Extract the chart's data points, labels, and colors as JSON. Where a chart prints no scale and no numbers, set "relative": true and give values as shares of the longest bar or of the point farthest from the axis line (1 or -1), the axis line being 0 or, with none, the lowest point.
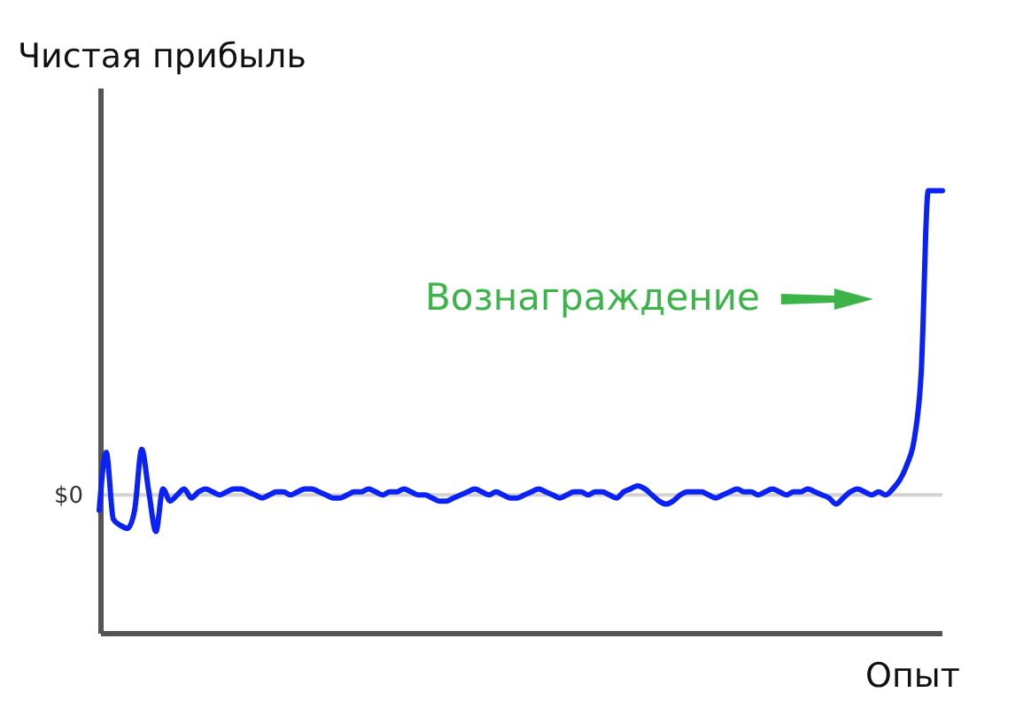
{
  "chart_data": {
    "type": "line",
    "title": "Чистая прибыль",
    "xlabel": "Опыт",
    "relative": true,
    "annotations": [
      "Вознаграждение"
    ],
    "ref_lines": [
      {
        "axis": "y",
        "value": 0,
        "label": "$0",
        "color": "#d3d3d3"
      }
    ],
    "categories": [
      null,
      null,
      null,
      null,
      null,
      null,
      null,
      null,
      null,
      null,
      null,
      null,
      null,
      null,
      null,
      null,
      null,
      null,
      null,
      null,
      null,
      null,
      null,
      null,
      null,
      null,
      null,
      null,
      null,
      null,
      null,
      null,
      null,
      null,
      null,
      null,
      null,
      null,
      null,
      null,
      null,
      null,
      null,
      null,
      null,
      null,
      null,
      null,
      null,
      null,
      null,
      null,
      null,
      null,
      null,
      null,
      null,
      null,
      null,
      null,
      null,
      null,
      null,
      null,
      null,
      null,
      null,
      null,
      null,
      null,
      null,
      null,
      null,
      null,
      null,
      null,
      null,
      null,
      null,
      null,
      null,
      null,
      null,
      null,
      null,
      null,
      null,
      null,
      null,
      null,
      null,
      null,
      null,
      null,
      null,
      null,
      null,
      null,
      null,
      null,
      null,
      null,
      null,
      null,
      null,
      null,
      null,
      null,
      null,
      null,
      null,
      null,
      null,
      null,
      null,
      null,
      null,
      null,
      null,
      null
    ],
    "series": [
      {
        "color": "#0a22f5",
        "values": [
          -0.05,
          0.14,
          -0.08,
          -0.1,
          -0.11,
          -0.05,
          0.15,
          0.01,
          -0.12,
          0.02,
          -0.02,
          0,
          0.02,
          -0.01,
          0.01,
          0.02,
          0.01,
          0,
          0.01,
          0.02,
          0.02,
          0.01,
          0,
          -0.01,
          0,
          0.01,
          0.01,
          0,
          0.01,
          0.02,
          0.02,
          0.01,
          0,
          -0.01,
          -0.01,
          0,
          0.01,
          0.01,
          0.02,
          0.01,
          0,
          0.01,
          0.01,
          0.02,
          0.01,
          0,
          0,
          -0.01,
          -0.02,
          -0.02,
          -0.01,
          0,
          0.01,
          0.02,
          0.01,
          0,
          0.01,
          0,
          -0.01,
          -0.01,
          0,
          0.01,
          0.02,
          0.01,
          0,
          -0.01,
          0,
          0.01,
          0.01,
          0,
          0.01,
          0.01,
          0,
          -0.01,
          0.01,
          0.02,
          0.03,
          0.02,
          0,
          -0.02,
          -0.03,
          -0.02,
          0,
          0.01,
          0.01,
          0.01,
          0,
          -0.01,
          0,
          0.01,
          0.02,
          0.01,
          0.01,
          0,
          0.01,
          0.02,
          0.01,
          0,
          0.01,
          0.01,
          0.02,
          0.01,
          0,
          -0.01,
          -0.03,
          -0.01,
          0.01,
          0.02,
          0.01,
          0,
          0.01,
          0,
          0.02,
          0.05,
          0.1,
          0.18,
          0.4,
          1,
          1,
          1
        ]
      }
    ]
  }
}
